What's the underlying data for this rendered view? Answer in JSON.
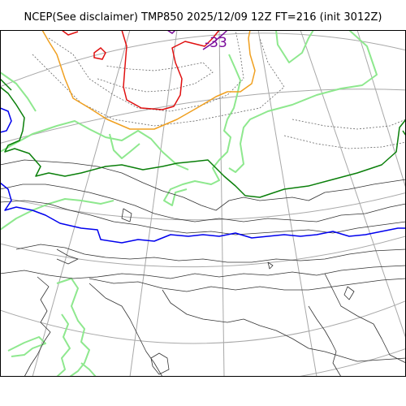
{
  "title": "NCEP(See disclaimer) TMP850 2025/12/09 12Z FT=216 (init 3012Z)",
  "labels": {
    "contour_label": "-33"
  },
  "colors": {
    "background": "#ffffff",
    "frame": "#000000",
    "graticule": "#a8a8a8",
    "coastline": "#8ee88e",
    "isotherm_minor": "#555555",
    "isotherm_major": "#111111",
    "isotherm_dashed": "#666666",
    "isotherm_zero": "#0000ee",
    "isotherm_green": "#0a7f0a",
    "isotherm_orange": "#f0a020",
    "isotherm_red": "#e01010",
    "isotherm_purple": "#7a0a9a"
  }
}
